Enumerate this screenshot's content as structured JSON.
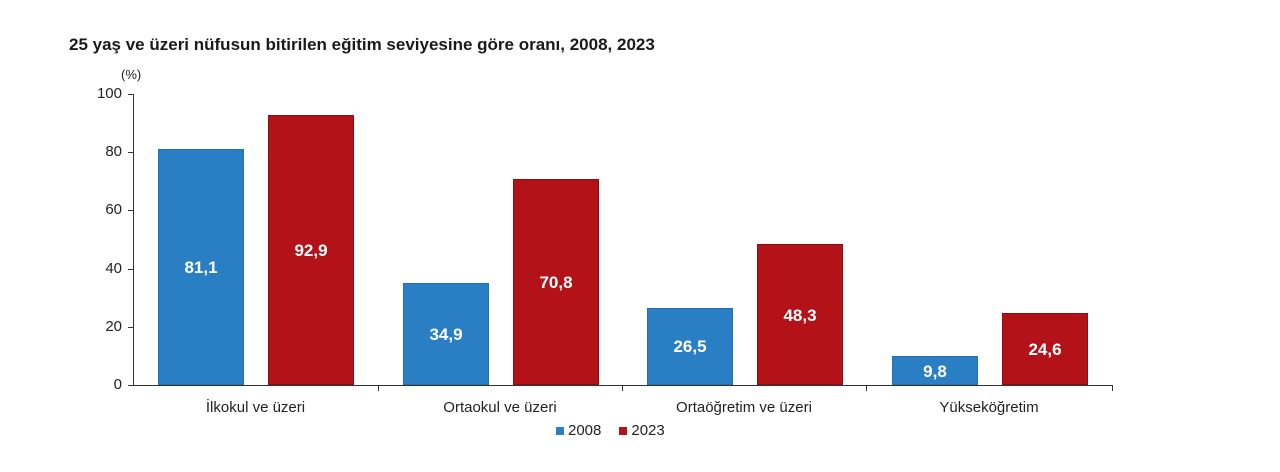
{
  "title": "25 yaş ve üzeri nüfusun bitirilen eğitim seviyesine göre oranı, 2008, 2023",
  "unit_label": "(%)",
  "y_ticks": [
    "0",
    "20",
    "40",
    "60",
    "80",
    "100"
  ],
  "categories": [
    "İlkokul ve üzeri",
    "Ortaokul ve üzeri",
    "Ortaöğretim ve üzeri",
    "Yükseköğretim"
  ],
  "labels_2008": [
    "81,1",
    "34,9",
    "26,5",
    "9,8"
  ],
  "labels_2023": [
    "92,9",
    "70,8",
    "48,3",
    "24,6"
  ],
  "legend": [
    {
      "name": "2008",
      "color": "#2a7fc4"
    },
    {
      "name": "2023",
      "color": "#b31318"
    }
  ],
  "colors": {
    "series_2008": "#2a7fc4",
    "series_2023": "#b31318"
  },
  "chart_data": {
    "type": "bar",
    "title": "25 yaş ve üzeri nüfusun bitirilen eğitim seviyesine göre oranı, 2008, 2023",
    "xlabel": "",
    "ylabel": "(%)",
    "ylim": [
      0,
      100
    ],
    "y_ticks": [
      0,
      20,
      40,
      60,
      80,
      100
    ],
    "grid": false,
    "legend_position": "bottom",
    "categories": [
      "İlkokul ve üzeri",
      "Ortaokul ve üzeri",
      "Ortaöğretim ve üzeri",
      "Yükseköğretim"
    ],
    "series": [
      {
        "name": "2008",
        "color": "#2a7fc4",
        "values": [
          81.1,
          34.9,
          26.5,
          9.8
        ]
      },
      {
        "name": "2023",
        "color": "#b31318",
        "values": [
          92.9,
          70.8,
          48.3,
          24.6
        ]
      }
    ]
  }
}
